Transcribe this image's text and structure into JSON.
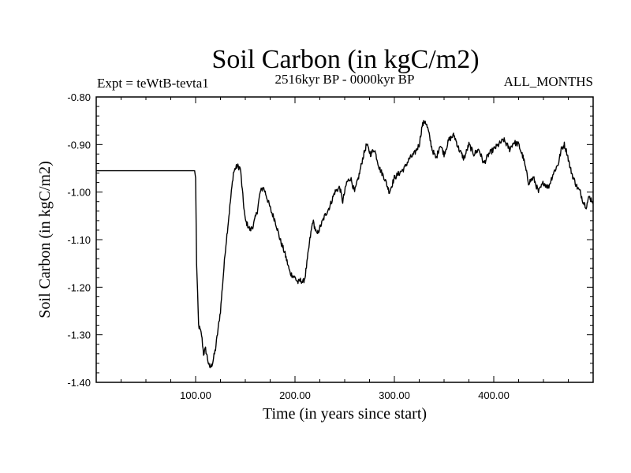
{
  "chart_data": {
    "type": "line",
    "title": "Soil Carbon (in kgC/m2)",
    "subtitle_left": "Expt = teWtB-tevta1",
    "subtitle_center": "2516kyr BP - 0000kyr BP",
    "subtitle_right": "ALL_MONTHS",
    "xlabel": "Time (in years since start)",
    "ylabel": "Soil Carbon (in kgC/m2)",
    "xlim": [
      0,
      500
    ],
    "ylim": [
      -1.4,
      -0.8
    ],
    "xticks": [
      {
        "value": 100,
        "label": "100.00"
      },
      {
        "value": 200,
        "label": "200.00"
      },
      {
        "value": 300,
        "label": "300.00"
      },
      {
        "value": 400,
        "label": "400.00"
      }
    ],
    "yticks": [
      {
        "value": -0.8,
        "label": "-0.80"
      },
      {
        "value": -0.9,
        "label": "-0.90"
      },
      {
        "value": -1.0,
        "label": "-1.00"
      },
      {
        "value": -1.1,
        "label": "-1.10"
      },
      {
        "value": -1.2,
        "label": "-1.20"
      },
      {
        "value": -1.3,
        "label": "-1.30"
      },
      {
        "value": -1.4,
        "label": "-1.40"
      }
    ],
    "series": [
      {
        "name": "Soil Carbon",
        "color": "#000000",
        "x": [
          0,
          99,
          100,
          101,
          103,
          106,
          108,
          110,
          112,
          114,
          117,
          120,
          125,
          130,
          135,
          138,
          140,
          142,
          145,
          148,
          150,
          155,
          158,
          162,
          165,
          168,
          170,
          173,
          176,
          180,
          185,
          190,
          195,
          200,
          203,
          206,
          208,
          210,
          212,
          215,
          218,
          222,
          226,
          230,
          235,
          240,
          245,
          248,
          252,
          256,
          260,
          265,
          268,
          272,
          276,
          280,
          285,
          290,
          295,
          300,
          305,
          310,
          315,
          320,
          325,
          328,
          331,
          334,
          338,
          342,
          346,
          350,
          355,
          360,
          365,
          370,
          375,
          380,
          385,
          390,
          395,
          400,
          405,
          410,
          413,
          416,
          420,
          425,
          430,
          435,
          440,
          445,
          450,
          455,
          460,
          465,
          468,
          471,
          474,
          477,
          480,
          484,
          487,
          490,
          493,
          496,
          500
        ],
        "values": [
          -0.955,
          -0.955,
          -0.97,
          -1.15,
          -1.28,
          -1.3,
          -1.34,
          -1.33,
          -1.35,
          -1.37,
          -1.36,
          -1.33,
          -1.25,
          -1.12,
          -1.02,
          -0.96,
          -0.95,
          -0.945,
          -0.95,
          -1.02,
          -1.06,
          -1.08,
          -1.07,
          -1.04,
          -1.0,
          -0.99,
          -1.0,
          -1.02,
          -1.04,
          -1.06,
          -1.1,
          -1.13,
          -1.17,
          -1.18,
          -1.19,
          -1.185,
          -1.19,
          -1.18,
          -1.15,
          -1.1,
          -1.06,
          -1.09,
          -1.07,
          -1.05,
          -1.03,
          -1.0,
          -0.99,
          -1.02,
          -0.98,
          -0.97,
          -1.0,
          -0.96,
          -0.93,
          -0.9,
          -0.92,
          -0.91,
          -0.95,
          -0.97,
          -1.0,
          -0.97,
          -0.96,
          -0.95,
          -0.93,
          -0.92,
          -0.9,
          -0.86,
          -0.85,
          -0.87,
          -0.91,
          -0.93,
          -0.9,
          -0.92,
          -0.89,
          -0.88,
          -0.91,
          -0.93,
          -0.9,
          -0.92,
          -0.91,
          -0.94,
          -0.92,
          -0.91,
          -0.9,
          -0.89,
          -0.9,
          -0.91,
          -0.895,
          -0.9,
          -0.93,
          -0.98,
          -0.97,
          -1.0,
          -0.98,
          -0.99,
          -0.96,
          -0.94,
          -0.91,
          -0.9,
          -0.92,
          -0.95,
          -0.97,
          -0.99,
          -1.0,
          -1.02,
          -1.03,
          -1.01,
          -1.02
        ]
      }
    ]
  }
}
